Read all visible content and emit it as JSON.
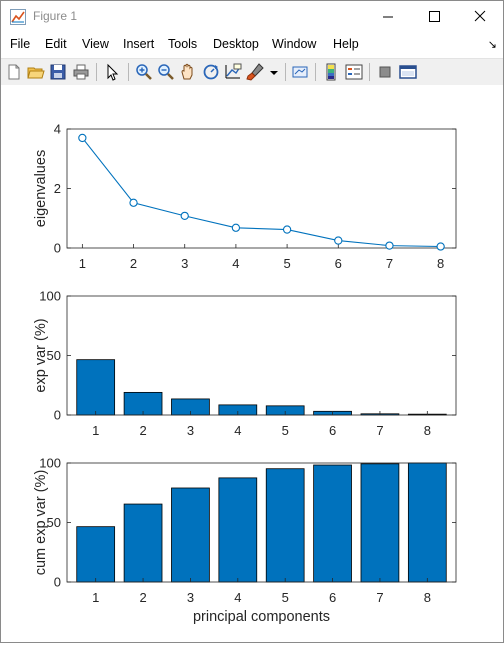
{
  "window": {
    "title": "Figure 1",
    "minimize_glyph": "—",
    "maximize_glyph": "☐",
    "close_glyph": "✕"
  },
  "menu": {
    "items": [
      "File",
      "Edit",
      "View",
      "Insert",
      "Tools",
      "Desktop",
      "Window",
      "Help"
    ],
    "overflow_glyph": "↘"
  },
  "toolbar": {
    "icons": [
      "new-figure-icon",
      "open-file-icon",
      "save-icon",
      "print-icon",
      "pointer-icon",
      "zoom-in-icon",
      "zoom-out-icon",
      "pan-icon",
      "rotate-3d-icon",
      "data-cursor-icon",
      "brush-icon",
      "link-plot-icon",
      "colorbar-icon",
      "legend-icon",
      "hide-plot-tools-icon",
      "show-plot-tools-icon"
    ]
  },
  "chart_data": [
    {
      "type": "line",
      "x": [
        1,
        2,
        3,
        4,
        5,
        6,
        7,
        8
      ],
      "values": [
        3.7,
        1.52,
        1.08,
        0.68,
        0.62,
        0.25,
        0.08,
        0.05
      ],
      "xlabel": "",
      "ylabel": "eigenvalues",
      "xlim": [
        0.7,
        8.3
      ],
      "ylim": [
        0,
        4
      ],
      "yticks": [
        0,
        2,
        4
      ],
      "xticks": [
        1,
        2,
        3,
        4,
        5,
        6,
        7,
        8
      ],
      "color": "#0072BD",
      "marker": "circle"
    },
    {
      "type": "bar",
      "categories": [
        "1",
        "2",
        "3",
        "4",
        "5",
        "6",
        "7",
        "8"
      ],
      "values": [
        46.5,
        19,
        13.5,
        8.5,
        7.7,
        3.1,
        1.0,
        0.7
      ],
      "xlabel": "",
      "ylabel": "exp var (%)",
      "ylim": [
        0,
        100
      ],
      "yticks": [
        0,
        50,
        100
      ],
      "color": "#0072BD"
    },
    {
      "type": "bar",
      "categories": [
        "1",
        "2",
        "3",
        "4",
        "5",
        "6",
        "7",
        "8"
      ],
      "values": [
        46.5,
        65.5,
        79,
        87.5,
        95.2,
        98.3,
        99.3,
        100
      ],
      "xlabel": "principal components",
      "ylabel": "cum exp var (%)",
      "ylim": [
        0,
        100
      ],
      "yticks": [
        0,
        50,
        100
      ],
      "color": "#0072BD"
    }
  ]
}
